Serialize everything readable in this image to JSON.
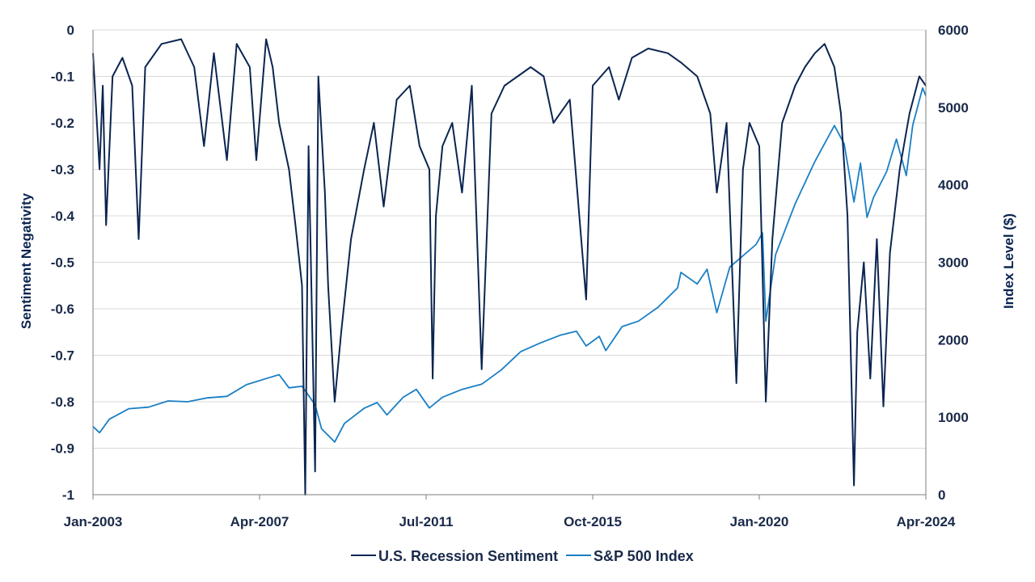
{
  "chart_data": {
    "type": "line",
    "title": "",
    "xlabel": "",
    "ylabel_left": "Sentiment Negativity",
    "ylabel_right": "Index Level ($)",
    "x_range": [
      "2003-01",
      "2024-04"
    ],
    "x_tick_labels": [
      "Jan-2003",
      "Apr-2007",
      "Jul-2011",
      "Oct-2015",
      "Jan-2020",
      "Apr-2024"
    ],
    "y_left_range": [
      -1,
      0
    ],
    "y_left_ticks": [
      "0",
      "-0.1",
      "-0.2",
      "-0.3",
      "-0.4",
      "-0.5",
      "-0.6",
      "-0.7",
      "-0.8",
      "-0.9",
      "-1"
    ],
    "y_right_range": [
      0,
      6000
    ],
    "y_right_ticks": [
      "6000",
      "5000",
      "4000",
      "3000",
      "2000",
      "1000",
      "0"
    ],
    "grid": "horizontal",
    "legend_position": "bottom",
    "series": [
      {
        "name": "U.S. Recession Sentiment",
        "axis": "left",
        "color": "#0b2550",
        "points": [
          [
            "2003-01",
            -0.05
          ],
          [
            "2003-03",
            -0.3
          ],
          [
            "2003-04",
            -0.12
          ],
          [
            "2003-05",
            -0.42
          ],
          [
            "2003-07",
            -0.1
          ],
          [
            "2003-10",
            -0.06
          ],
          [
            "2004-01",
            -0.12
          ],
          [
            "2004-03",
            -0.45
          ],
          [
            "2004-05",
            -0.08
          ],
          [
            "2004-10",
            -0.03
          ],
          [
            "2005-04",
            -0.02
          ],
          [
            "2005-08",
            -0.08
          ],
          [
            "2005-11",
            -0.25
          ],
          [
            "2006-02",
            -0.05
          ],
          [
            "2006-06",
            -0.28
          ],
          [
            "2006-09",
            -0.03
          ],
          [
            "2007-01",
            -0.08
          ],
          [
            "2007-03",
            -0.28
          ],
          [
            "2007-06",
            -0.02
          ],
          [
            "2007-08",
            -0.08
          ],
          [
            "2007-10",
            -0.2
          ],
          [
            "2008-01",
            -0.3
          ],
          [
            "2008-03",
            -0.42
          ],
          [
            "2008-05",
            -0.55
          ],
          [
            "2008-06",
            -1.0
          ],
          [
            "2008-07",
            -0.25
          ],
          [
            "2008-09",
            -0.95
          ],
          [
            "2008-10",
            -0.1
          ],
          [
            "2008-12",
            -0.35
          ],
          [
            "2009-01",
            -0.55
          ],
          [
            "2009-03",
            -0.8
          ],
          [
            "2009-05",
            -0.65
          ],
          [
            "2009-08",
            -0.45
          ],
          [
            "2009-12",
            -0.3
          ],
          [
            "2010-03",
            -0.2
          ],
          [
            "2010-06",
            -0.38
          ],
          [
            "2010-10",
            -0.15
          ],
          [
            "2011-02",
            -0.12
          ],
          [
            "2011-05",
            -0.25
          ],
          [
            "2011-08",
            -0.3
          ],
          [
            "2011-09",
            -0.75
          ],
          [
            "2011-10",
            -0.4
          ],
          [
            "2011-12",
            -0.25
          ],
          [
            "2012-03",
            -0.2
          ],
          [
            "2012-06",
            -0.35
          ],
          [
            "2012-09",
            -0.12
          ],
          [
            "2012-12",
            -0.73
          ],
          [
            "2013-03",
            -0.18
          ],
          [
            "2013-07",
            -0.12
          ],
          [
            "2013-11",
            -0.1
          ],
          [
            "2014-03",
            -0.08
          ],
          [
            "2014-07",
            -0.1
          ],
          [
            "2014-10",
            -0.2
          ],
          [
            "2015-03",
            -0.15
          ],
          [
            "2015-08",
            -0.58
          ],
          [
            "2015-10",
            -0.12
          ],
          [
            "2016-03",
            -0.08
          ],
          [
            "2016-06",
            -0.15
          ],
          [
            "2016-10",
            -0.06
          ],
          [
            "2017-03",
            -0.04
          ],
          [
            "2017-09",
            -0.05
          ],
          [
            "2018-01",
            -0.07
          ],
          [
            "2018-06",
            -0.1
          ],
          [
            "2018-10",
            -0.18
          ],
          [
            "2018-12",
            -0.35
          ],
          [
            "2019-03",
            -0.2
          ],
          [
            "2019-06",
            -0.76
          ],
          [
            "2019-08",
            -0.3
          ],
          [
            "2019-10",
            -0.2
          ],
          [
            "2020-01",
            -0.25
          ],
          [
            "2020-03",
            -0.8
          ],
          [
            "2020-05",
            -0.45
          ],
          [
            "2020-08",
            -0.2
          ],
          [
            "2020-12",
            -0.12
          ],
          [
            "2021-03",
            -0.08
          ],
          [
            "2021-06",
            -0.05
          ],
          [
            "2021-09",
            -0.03
          ],
          [
            "2021-12",
            -0.08
          ],
          [
            "2022-02",
            -0.18
          ],
          [
            "2022-04",
            -0.4
          ],
          [
            "2022-06",
            -0.98
          ],
          [
            "2022-07",
            -0.65
          ],
          [
            "2022-09",
            -0.5
          ],
          [
            "2022-11",
            -0.75
          ],
          [
            "2023-01",
            -0.45
          ],
          [
            "2023-03",
            -0.81
          ],
          [
            "2023-05",
            -0.48
          ],
          [
            "2023-08",
            -0.3
          ],
          [
            "2023-11",
            -0.18
          ],
          [
            "2024-02",
            -0.1
          ],
          [
            "2024-04",
            -0.12
          ]
        ]
      },
      {
        "name": "S&P 500 Index",
        "axis": "right",
        "color": "#1a7fc4",
        "points": [
          [
            "2003-01",
            880
          ],
          [
            "2003-03",
            800
          ],
          [
            "2003-06",
            975
          ],
          [
            "2003-12",
            1110
          ],
          [
            "2004-06",
            1130
          ],
          [
            "2004-12",
            1210
          ],
          [
            "2005-06",
            1200
          ],
          [
            "2005-12",
            1250
          ],
          [
            "2006-06",
            1270
          ],
          [
            "2006-12",
            1420
          ],
          [
            "2007-06",
            1500
          ],
          [
            "2007-10",
            1550
          ],
          [
            "2008-01",
            1380
          ],
          [
            "2008-05",
            1400
          ],
          [
            "2008-09",
            1160
          ],
          [
            "2008-11",
            850
          ],
          [
            "2009-03",
            680
          ],
          [
            "2009-06",
            920
          ],
          [
            "2009-12",
            1115
          ],
          [
            "2010-04",
            1190
          ],
          [
            "2010-07",
            1030
          ],
          [
            "2010-12",
            1258
          ],
          [
            "2011-04",
            1360
          ],
          [
            "2011-08",
            1120
          ],
          [
            "2011-12",
            1258
          ],
          [
            "2012-06",
            1360
          ],
          [
            "2012-12",
            1426
          ],
          [
            "2013-06",
            1610
          ],
          [
            "2013-12",
            1848
          ],
          [
            "2014-06",
            1960
          ],
          [
            "2014-12",
            2058
          ],
          [
            "2015-05",
            2110
          ],
          [
            "2015-08",
            1920
          ],
          [
            "2015-12",
            2044
          ],
          [
            "2016-02",
            1860
          ],
          [
            "2016-07",
            2170
          ],
          [
            "2016-12",
            2240
          ],
          [
            "2017-06",
            2420
          ],
          [
            "2017-12",
            2670
          ],
          [
            "2018-01",
            2870
          ],
          [
            "2018-06",
            2720
          ],
          [
            "2018-09",
            2910
          ],
          [
            "2018-12",
            2350
          ],
          [
            "2019-04",
            2940
          ],
          [
            "2019-12",
            3230
          ],
          [
            "2020-02",
            3380
          ],
          [
            "2020-03",
            2240
          ],
          [
            "2020-06",
            3100
          ],
          [
            "2020-12",
            3756
          ],
          [
            "2021-06",
            4300
          ],
          [
            "2021-12",
            4766
          ],
          [
            "2022-03",
            4530
          ],
          [
            "2022-06",
            3780
          ],
          [
            "2022-08",
            4280
          ],
          [
            "2022-10",
            3580
          ],
          [
            "2022-12",
            3840
          ],
          [
            "2023-04",
            4170
          ],
          [
            "2023-07",
            4590
          ],
          [
            "2023-10",
            4120
          ],
          [
            "2023-12",
            4770
          ],
          [
            "2024-03",
            5250
          ],
          [
            "2024-04",
            5150
          ]
        ]
      }
    ]
  }
}
